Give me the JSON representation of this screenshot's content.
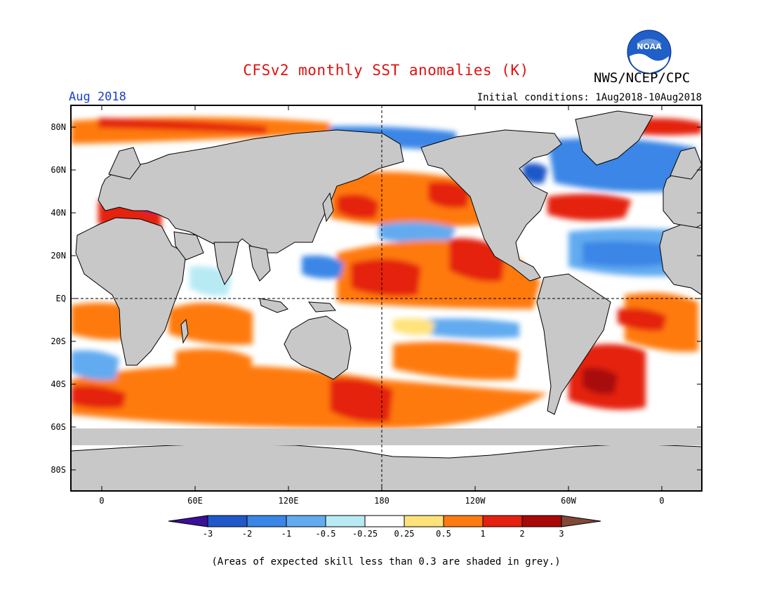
{
  "header": {
    "title": "CFSv2 monthly SST anomalies (K)",
    "agency": "NWS/NCEP/CPC",
    "logo_text": "NOAA",
    "month": "Aug 2018",
    "initial_conditions": "Initial conditions: 1Aug2018-10Aug2018"
  },
  "map": {
    "lat_labels": [
      "80N",
      "60N",
      "40N",
      "20N",
      "EQ",
      "20S",
      "40S",
      "60S",
      "80S"
    ],
    "lon_labels": [
      "0",
      "60E",
      "120E",
      "180",
      "120W",
      "60W",
      "0"
    ],
    "lat_range": [
      -90,
      90
    ],
    "lon_range": [
      -20,
      380
    ],
    "land_color": "#c8c8c8",
    "ocean_color": "#ffffff"
  },
  "colorbar": {
    "labels": [
      "-3",
      "-2",
      "-1",
      "-0.5",
      "-0.25",
      "0.25",
      "0.5",
      "1",
      "2",
      "3"
    ],
    "colors": [
      "#3a109a",
      "#1f58c8",
      "#3a86e6",
      "#62abf0",
      "#b8eaf4",
      "#ffffff",
      "#ffe27a",
      "#ff7a10",
      "#e42010",
      "#a80808",
      "#804838"
    ]
  },
  "caption": "(Areas of expected skill less than 0.3 are shaded in grey.)"
}
